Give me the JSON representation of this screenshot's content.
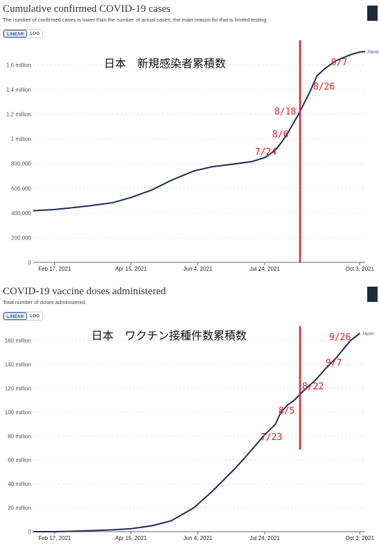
{
  "chart_data": [
    {
      "type": "line",
      "title": "Cumulative confirmed COVID-19 cases",
      "subtitle": "The number of confirmed cases is lower than the number of actual cases; the main reason for that is limited testing.",
      "toggle": {
        "linear": "LINEAR",
        "log": "LOG",
        "active": "linear"
      },
      "ytick_labels": [
        "0",
        "200,000",
        "400,000",
        "600,000",
        "800,000",
        "1 million",
        "1.2 million",
        "1.4 million",
        "1.6 million"
      ],
      "ytick_values": [
        0,
        200000,
        400000,
        600000,
        800000,
        1000000,
        1200000,
        1400000,
        1600000
      ],
      "ylim": [
        0,
        1720000
      ],
      "xlim": [
        "2021-02-01",
        "2021-10-07"
      ],
      "xtick_labels": [
        "Feb 17, 2021",
        "Apr 15, 2021",
        "Jun 4, 2021",
        "Jul 24, 2021",
        "Oct 3, 2021"
      ],
      "xtick_dates": [
        "2021-02-17",
        "2021-04-15",
        "2021-06-04",
        "2021-07-24",
        "2021-10-03"
      ],
      "grid": true,
      "series": [
        {
          "name": "Japan",
          "color": "#1b2a55",
          "x": [
            "2021-02-01",
            "2021-02-17",
            "2021-03-01",
            "2021-03-15",
            "2021-04-01",
            "2021-04-15",
            "2021-05-01",
            "2021-05-15",
            "2021-06-01",
            "2021-06-15",
            "2021-07-01",
            "2021-07-15",
            "2021-07-24",
            "2021-08-01",
            "2021-08-06",
            "2021-08-10",
            "2021-08-18",
            "2021-08-26",
            "2021-09-01",
            "2021-09-07",
            "2021-09-15",
            "2021-09-26",
            "2021-10-03",
            "2021-10-07"
          ],
          "y": [
            418000,
            428000,
            441000,
            458000,
            482000,
            525000,
            588000,
            664000,
            740000,
            775000,
            796000,
            818000,
            848000,
            910000,
            980000,
            1045000,
            1195000,
            1365000,
            1510000,
            1570000,
            1632000,
            1682000,
            1703000,
            1707000
          ]
        }
      ],
      "annotations": {
        "heading": "日本　新規感染者累積数",
        "dates": [
          {
            "label": "7/24",
            "x": "2021-07-24"
          },
          {
            "label": "8/6",
            "x": "2021-08-06"
          },
          {
            "label": "8/18",
            "x": "2021-08-18"
          },
          {
            "label": "8/26",
            "x": "2021-08-26"
          },
          {
            "label": "9/7",
            "x": "2021-09-07"
          }
        ],
        "marker_color": "#e02020"
      }
    },
    {
      "type": "line",
      "title": "COVID-19 vaccine doses administered",
      "subtitle": "Total number of doses administered.",
      "toggle": {
        "linear": "LINEAR",
        "log": "LOG",
        "active": "linear"
      },
      "ytick_labels": [
        "0",
        "20 million",
        "40 million",
        "60 million",
        "80 million",
        "100 million",
        "120 million",
        "140 million",
        "160 million"
      ],
      "ytick_values": [
        0,
        20000000,
        40000000,
        60000000,
        80000000,
        100000000,
        120000000,
        140000000,
        160000000
      ],
      "ylim": [
        0,
        172000000
      ],
      "xlim": [
        "2021-02-01",
        "2021-10-07"
      ],
      "xtick_labels": [
        "Feb 17, 2021",
        "Apr 15, 2021",
        "Jun 4, 2021",
        "Jul 24, 2021",
        "Oct 3, 2021"
      ],
      "xtick_dates": [
        "2021-02-17",
        "2021-04-15",
        "2021-06-04",
        "2021-07-24",
        "2021-10-03"
      ],
      "grid": true,
      "series": [
        {
          "name": "Japan",
          "color": "#1b2a55",
          "x": [
            "2021-02-01",
            "2021-02-17",
            "2021-03-01",
            "2021-03-15",
            "2021-04-01",
            "2021-04-15",
            "2021-04-25",
            "2021-05-01",
            "2021-05-15",
            "2021-06-01",
            "2021-06-15",
            "2021-07-01",
            "2021-07-10",
            "2021-07-20",
            "2021-07-23",
            "2021-08-01",
            "2021-08-05",
            "2021-08-10",
            "2021-08-15",
            "2021-08-22",
            "2021-08-31",
            "2021-09-07",
            "2021-09-15",
            "2021-09-26",
            "2021-10-03"
          ],
          "y": [
            0,
            0,
            300000,
            800000,
            1500000,
            2500000,
            4000000,
            5000000,
            9000000,
            20000000,
            34000000,
            52000000,
            63000000,
            76000000,
            80000000,
            90000000,
            100000000,
            106000000,
            110000000,
            118000000,
            127000000,
            136000000,
            145000000,
            160000000,
            166000000
          ]
        }
      ],
      "annotations": {
        "heading": "日本　ワクチン接種件数累積数",
        "dates": [
          {
            "label": "7/23",
            "x": "2021-07-23"
          },
          {
            "label": "8/5",
            "x": "2021-08-05"
          },
          {
            "label": "8/22",
            "x": "2021-08-22"
          },
          {
            "label": "9/7",
            "x": "2021-09-07"
          },
          {
            "label": "9/26",
            "x": "2021-09-26"
          }
        ],
        "marker_color": "#e02020"
      }
    }
  ]
}
